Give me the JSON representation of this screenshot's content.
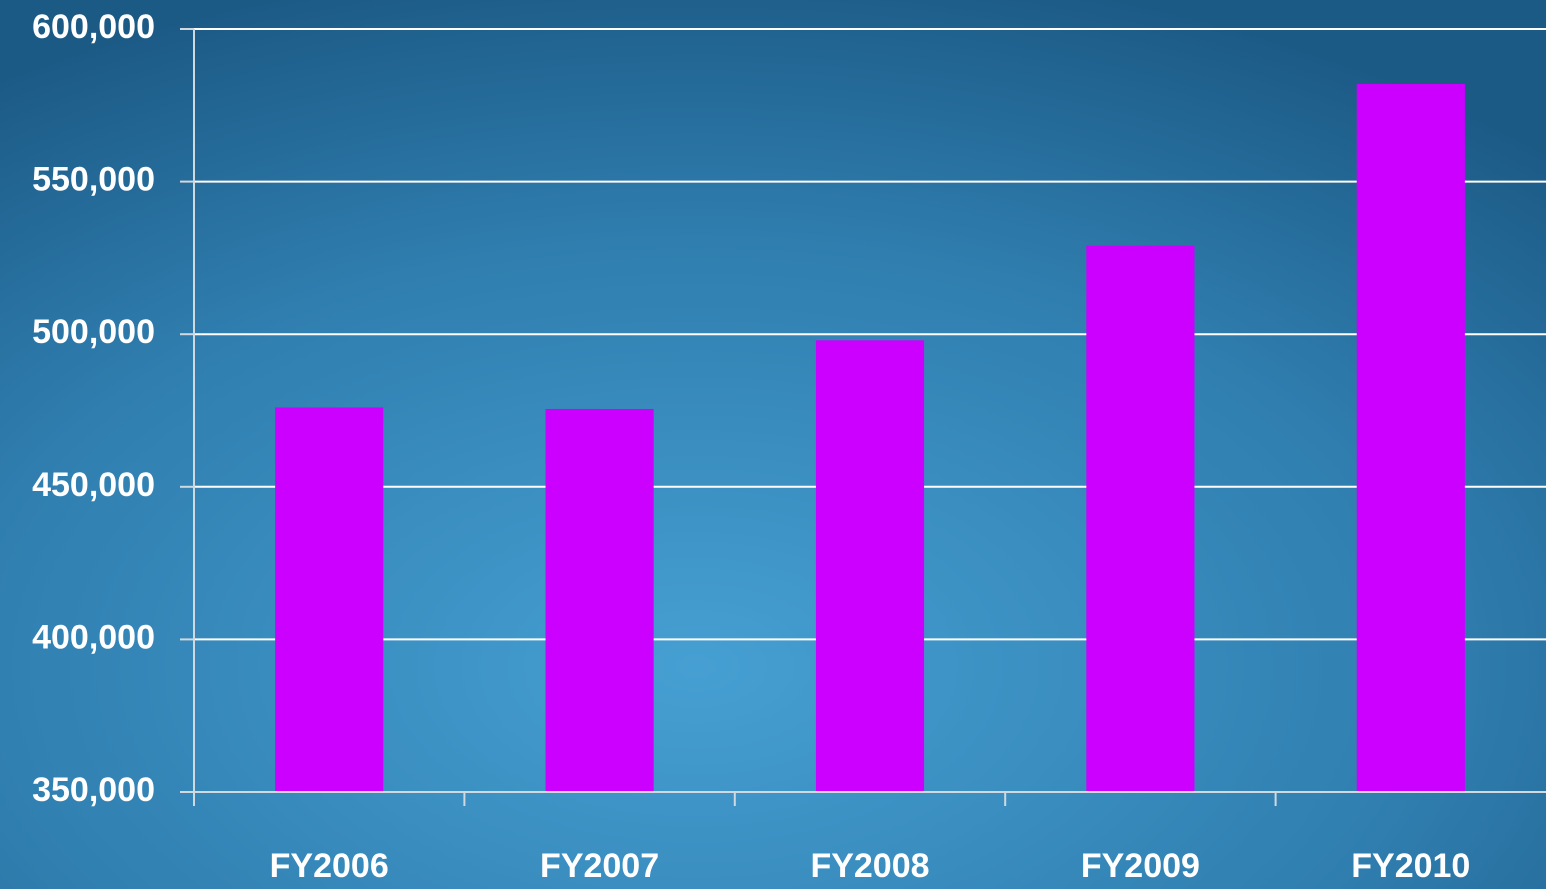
{
  "chart_data": {
    "type": "bar",
    "categories": [
      "FY2006",
      "FY2007",
      "FY2008",
      "FY2009",
      "FY2010"
    ],
    "values": [
      476000,
      475500,
      498000,
      529000,
      582000
    ],
    "color": "#cc00ff",
    "ylim": [
      350000,
      600000
    ],
    "yticks": [
      {
        "value": 350000,
        "label": "350,000"
      },
      {
        "value": 400000,
        "label": "400,000"
      },
      {
        "value": 450000,
        "label": "450,000"
      },
      {
        "value": 500000,
        "label": "500,000"
      },
      {
        "value": 550000,
        "label": "550,000"
      },
      {
        "value": 600000,
        "label": "600,000"
      }
    ],
    "grid": true
  }
}
